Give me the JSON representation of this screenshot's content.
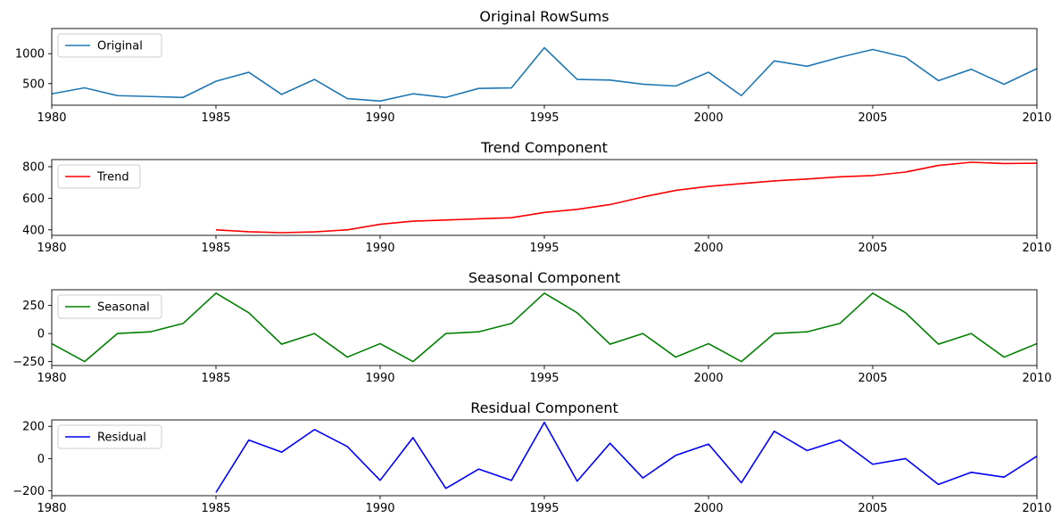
{
  "chart_data": [
    {
      "type": "line",
      "title": "Original RowSums",
      "legend": "top-left",
      "xlim": [
        1980,
        2010
      ],
      "ylim": [
        140,
        1420
      ],
      "x_ticks": [
        1980,
        1985,
        1990,
        1995,
        2000,
        2005,
        2010
      ],
      "y_ticks": [
        500,
        1000
      ],
      "grid": false,
      "series": [
        {
          "name": "Original",
          "color": "#1f77b4",
          "x": [
            1980,
            1981,
            1982,
            1983,
            1984,
            1985,
            1986,
            1987,
            1988,
            1989,
            1990,
            1991,
            1992,
            1993,
            1994,
            1995,
            1996,
            1997,
            1998,
            1999,
            2000,
            2001,
            2002,
            2003,
            2004,
            2005,
            2006,
            2007,
            2008,
            2009,
            2010
          ],
          "y": [
            330,
            430,
            300,
            285,
            270,
            540,
            690,
            320,
            570,
            250,
            210,
            330,
            270,
            420,
            430,
            1100,
            570,
            560,
            490,
            460,
            690,
            300,
            880,
            790,
            940,
            1070,
            940,
            550,
            740,
            490,
            750
          ]
        }
      ]
    },
    {
      "type": "line",
      "title": "Trend Component",
      "legend": "top-left",
      "xlim": [
        1980,
        2010
      ],
      "ylim": [
        365,
        845
      ],
      "x_ticks": [
        1980,
        1985,
        1990,
        1995,
        2000,
        2005,
        2010
      ],
      "y_ticks": [
        400,
        600,
        800
      ],
      "grid": false,
      "series": [
        {
          "name": "Trend",
          "color": "#ff0000",
          "x": [
            1985,
            1986,
            1987,
            1988,
            1989,
            1990,
            1991,
            1992,
            1993,
            1994,
            1995,
            1996,
            1997,
            1998,
            1999,
            2000,
            2001,
            2002,
            2003,
            2004,
            2005,
            2006,
            2007,
            2008,
            2009,
            2010
          ],
          "y": [
            400,
            388,
            382,
            387,
            400,
            435,
            455,
            462,
            470,
            477,
            510,
            530,
            560,
            608,
            650,
            675,
            693,
            710,
            722,
            736,
            744,
            766,
            808,
            828,
            820,
            822
          ]
        }
      ]
    },
    {
      "type": "line",
      "title": "Seasonal Component",
      "legend": "top-left",
      "xlim": [
        1980,
        2010
      ],
      "ylim": [
        -285,
        390
      ],
      "x_ticks": [
        1980,
        1985,
        1990,
        1995,
        2000,
        2005,
        2010
      ],
      "y_ticks": [
        -250,
        0,
        250
      ],
      "grid": false,
      "series": [
        {
          "name": "Seasonal",
          "color": "#008000",
          "x": [
            1980,
            1981,
            1982,
            1983,
            1984,
            1985,
            1986,
            1987,
            1988,
            1989,
            1990,
            1991,
            1992,
            1993,
            1994,
            1995,
            1996,
            1997,
            1998,
            1999,
            2000,
            2001,
            2002,
            2003,
            2004,
            2005,
            2006,
            2007,
            2008,
            2009,
            2010
          ],
          "y": [
            -90,
            -250,
            0,
            15,
            90,
            360,
            185,
            -95,
            0,
            -210,
            -90,
            -250,
            0,
            15,
            90,
            360,
            185,
            -95,
            0,
            -210,
            -90,
            -250,
            0,
            15,
            90,
            360,
            185,
            -95,
            0,
            -210,
            -90
          ]
        }
      ]
    },
    {
      "type": "line",
      "title": "Residual Component",
      "legend": "top-left",
      "xlim": [
        1980,
        2010
      ],
      "ylim": [
        -230,
        240
      ],
      "x_ticks": [
        1980,
        1985,
        1990,
        1995,
        2000,
        2005,
        2010
      ],
      "y_ticks": [
        -200,
        0,
        200
      ],
      "grid": false,
      "series": [
        {
          "name": "Residual",
          "color": "#0000ff",
          "x": [
            1985,
            1986,
            1987,
            1988,
            1989,
            1990,
            1991,
            1992,
            1993,
            1994,
            1995,
            1996,
            1997,
            1998,
            1999,
            2000,
            2001,
            2002,
            2003,
            2004,
            2005,
            2006,
            2007,
            2008,
            2009,
            2010
          ],
          "y": [
            -210,
            115,
            40,
            180,
            75,
            -135,
            130,
            -185,
            -65,
            -135,
            225,
            -140,
            95,
            -120,
            20,
            90,
            -150,
            170,
            50,
            115,
            -35,
            0,
            -160,
            -85,
            -115,
            15
          ]
        }
      ]
    }
  ]
}
